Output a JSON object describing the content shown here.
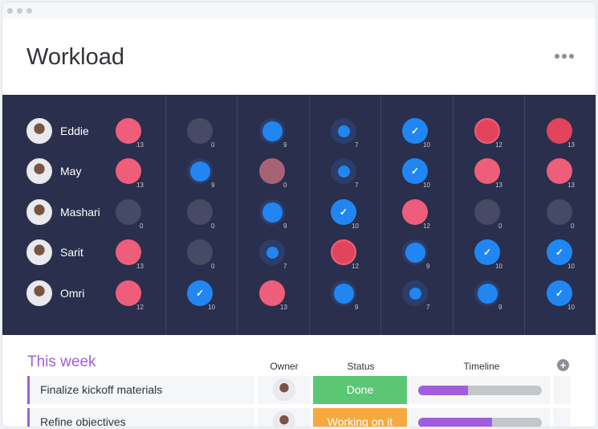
{
  "title": "Workload",
  "colors": {
    "panel": "#292f4c",
    "overload": "#ee5e7a",
    "overload_dark": "#e2445c",
    "full": "#2186f2",
    "empty": "#464a64",
    "muted": "#a86275",
    "done": "#5bc774",
    "working": "#f6a93e",
    "accent": "#a25ddc"
  },
  "people": [
    {
      "name": "Eddie",
      "cells": [
        {
          "v": "13",
          "s": "overload"
        },
        {
          "v": "0",
          "s": "empty"
        },
        {
          "v": "9",
          "s": "partial"
        },
        {
          "v": "7",
          "s": "partial"
        },
        {
          "v": "10",
          "s": "full"
        },
        {
          "v": "12",
          "s": "overload-ring"
        },
        {
          "v": "13",
          "s": "overload-dark"
        }
      ]
    },
    {
      "name": "May",
      "cells": [
        {
          "v": "13",
          "s": "overload"
        },
        {
          "v": "9",
          "s": "partial"
        },
        {
          "v": "0",
          "s": "muted"
        },
        {
          "v": "7",
          "s": "partial"
        },
        {
          "v": "10",
          "s": "full"
        },
        {
          "v": "13",
          "s": "overload"
        },
        {
          "v": "13",
          "s": "overload"
        }
      ]
    },
    {
      "name": "Mashari",
      "cells": [
        {
          "v": "0",
          "s": "empty"
        },
        {
          "v": "0",
          "s": "empty"
        },
        {
          "v": "9",
          "s": "partial"
        },
        {
          "v": "10",
          "s": "full"
        },
        {
          "v": "12",
          "s": "overload"
        },
        {
          "v": "0",
          "s": "empty"
        },
        {
          "v": "0",
          "s": "empty"
        }
      ]
    },
    {
      "name": "Sarit",
      "cells": [
        {
          "v": "13",
          "s": "overload"
        },
        {
          "v": "0",
          "s": "empty"
        },
        {
          "v": "7",
          "s": "partial"
        },
        {
          "v": "12",
          "s": "overload-ring"
        },
        {
          "v": "9",
          "s": "partial"
        },
        {
          "v": "10",
          "s": "full"
        },
        {
          "v": "10",
          "s": "full"
        }
      ]
    },
    {
      "name": "Omri",
      "cells": [
        {
          "v": "12",
          "s": "overload"
        },
        {
          "v": "10",
          "s": "full"
        },
        {
          "v": "13",
          "s": "overload"
        },
        {
          "v": "9",
          "s": "partial"
        },
        {
          "v": "7",
          "s": "partial"
        },
        {
          "v": "9",
          "s": "partial"
        },
        {
          "v": "10",
          "s": "full"
        }
      ]
    }
  ],
  "board": {
    "group": "This week",
    "headers": {
      "owner": "Owner",
      "status": "Status",
      "timeline": "Timeline"
    },
    "rows": [
      {
        "task": "Finalize kickoff materials",
        "status": "Done",
        "status_color": "#5bc774",
        "timeline_progress": 0.4
      },
      {
        "task": "Refine objectives",
        "status": "Working on it",
        "status_color": "#f6a93e",
        "timeline_progress": 0.6
      }
    ]
  }
}
